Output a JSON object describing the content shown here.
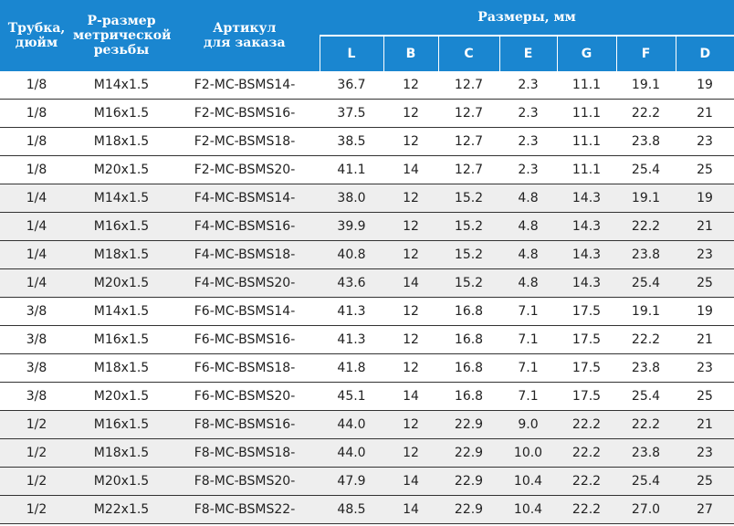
{
  "header": {
    "tube": [
      "Трубка,",
      "дюйм"
    ],
    "thread": [
      "Р-размер",
      "метрической",
      "резьбы"
    ],
    "article": [
      "Артикул",
      "для заказа"
    ],
    "group": "Размеры, мм",
    "dims": [
      "L",
      "B",
      "C",
      "E",
      "G",
      "F",
      "D"
    ]
  },
  "table": {
    "rows": [
      [
        "1/8",
        "M14x1.5",
        "F2-MC-BSMS14-",
        "36.7",
        "12",
        "12.7",
        "2.3",
        "11.1",
        "19.1",
        "19"
      ],
      [
        "1/8",
        "M16x1.5",
        "F2-MC-BSMS16-",
        "37.5",
        "12",
        "12.7",
        "2.3",
        "11.1",
        "22.2",
        "21"
      ],
      [
        "1/8",
        "M18x1.5",
        "F2-MC-BSMS18-",
        "38.5",
        "12",
        "12.7",
        "2.3",
        "11.1",
        "23.8",
        "23"
      ],
      [
        "1/8",
        "M20x1.5",
        "F2-MC-BSMS20-",
        "41.1",
        "14",
        "12.7",
        "2.3",
        "11.1",
        "25.4",
        "25"
      ],
      [
        "1/4",
        "M14x1.5",
        "F4-MC-BSMS14-",
        "38.0",
        "12",
        "15.2",
        "4.8",
        "14.3",
        "19.1",
        "19"
      ],
      [
        "1/4",
        "M16x1.5",
        "F4-MC-BSMS16-",
        "39.9",
        "12",
        "15.2",
        "4.8",
        "14.3",
        "22.2",
        "21"
      ],
      [
        "1/4",
        "M18x1.5",
        "F4-MC-BSMS18-",
        "40.8",
        "12",
        "15.2",
        "4.8",
        "14.3",
        "23.8",
        "23"
      ],
      [
        "1/4",
        "M20x1.5",
        "F4-MC-BSMS20-",
        "43.6",
        "14",
        "15.2",
        "4.8",
        "14.3",
        "25.4",
        "25"
      ],
      [
        "3/8",
        "M14x1.5",
        "F6-MC-BSMS14-",
        "41.3",
        "12",
        "16.8",
        "7.1",
        "17.5",
        "19.1",
        "19"
      ],
      [
        "3/8",
        "M16x1.5",
        "F6-MC-BSMS16-",
        "41.3",
        "12",
        "16.8",
        "7.1",
        "17.5",
        "22.2",
        "21"
      ],
      [
        "3/8",
        "M18x1.5",
        "F6-MC-BSMS18-",
        "41.8",
        "12",
        "16.8",
        "7.1",
        "17.5",
        "23.8",
        "23"
      ],
      [
        "3/8",
        "M20x1.5",
        "F6-MC-BSMS20-",
        "45.1",
        "14",
        "16.8",
        "7.1",
        "17.5",
        "25.4",
        "25"
      ],
      [
        "1/2",
        "M16x1.5",
        "F8-MC-BSMS16-",
        "44.0",
        "12",
        "22.9",
        "9.0",
        "22.2",
        "22.2",
        "21"
      ],
      [
        "1/2",
        "M18x1.5",
        "F8-MC-BSMS18-",
        "44.0",
        "12",
        "22.9",
        "10.0",
        "22.2",
        "23.8",
        "23"
      ],
      [
        "1/2",
        "M20x1.5",
        "F8-MC-BSMS20-",
        "47.9",
        "14",
        "22.9",
        "10.4",
        "22.2",
        "25.4",
        "25"
      ],
      [
        "1/2",
        "M22x1.5",
        "F8-MC-BSMS22-",
        "48.5",
        "14",
        "22.9",
        "10.4",
        "22.2",
        "27.0",
        "27"
      ]
    ]
  }
}
